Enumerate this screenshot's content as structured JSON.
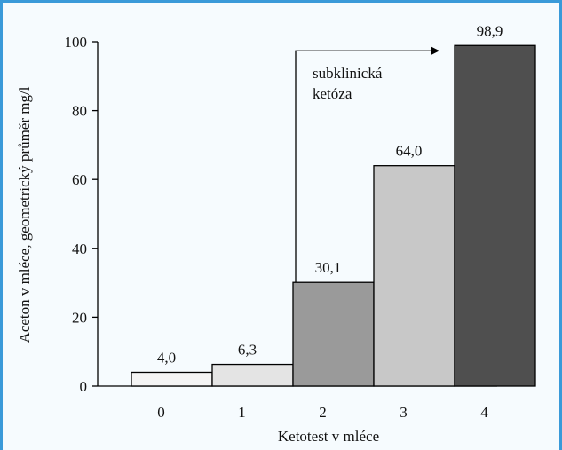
{
  "colors": {
    "frame": "#3a9ad9",
    "arrow": "#000000"
  },
  "chart_data": {
    "type": "bar",
    "categories": [
      "0",
      "1",
      "2",
      "3",
      "4"
    ],
    "values": [
      4.0,
      6.3,
      30.1,
      64.0,
      98.9
    ],
    "value_labels": [
      "4,0",
      "6,3",
      "30,1",
      "64,0",
      "98,9"
    ],
    "bar_colors": [
      "#f4f4f4",
      "#e4e4e4",
      "#9a9a9a",
      "#c8c8c8",
      "#4f4f4f"
    ],
    "xlabel": "Ketotest v mléce",
    "ylabel": "Aceton v mléce, geometrický průměr mg/l",
    "ylim": [
      0,
      100
    ],
    "yticks": [
      0,
      20,
      40,
      60,
      80,
      100
    ],
    "grid": false,
    "annotation": {
      "line1": "subklinická",
      "line2": "ketóza",
      "arrow_from_category": "2",
      "arrow_to_category": "4"
    }
  }
}
